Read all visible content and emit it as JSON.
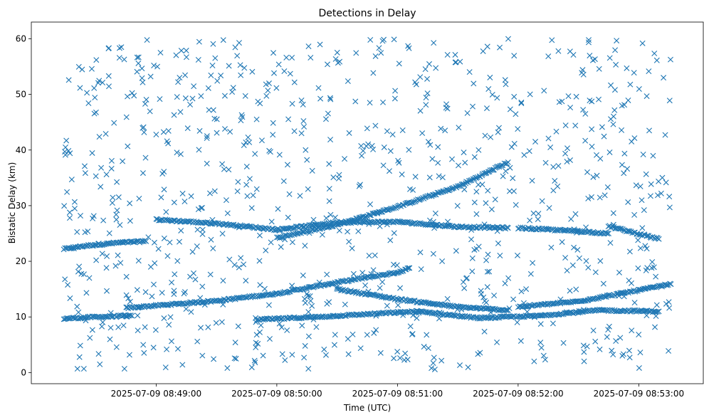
{
  "chart_data": {
    "type": "scatter",
    "title": "Detections in Delay",
    "xlabel": "Time (UTC)",
    "ylabel": "Bistatic Delay (km)",
    "marker": "x",
    "color": "#1f77b4",
    "grid": false,
    "xlim": [
      "2025-07-09 08:48:05",
      "2025-07-09 08:53:25"
    ],
    "ylim": [
      -2,
      63
    ],
    "xticks": [
      "2025-07-09 08:49:00",
      "2025-07-09 08:50:00",
      "2025-07-09 08:51:00",
      "2025-07-09 08:52:00",
      "2025-07-09 08:53:00"
    ],
    "yticks": [
      0,
      10,
      20,
      30,
      40,
      50,
      60
    ],
    "series": [
      {
        "kind": "track",
        "points": [
          {
            "x": "2025-07-09 08:48:14",
            "y": 22.2
          },
          {
            "x": "2025-07-09 08:48:25",
            "y": 22.8
          },
          {
            "x": "2025-07-09 08:48:40",
            "y": 23.3
          },
          {
            "x": "2025-07-09 08:48:55",
            "y": 23.6
          }
        ]
      },
      {
        "kind": "track",
        "points": [
          {
            "x": "2025-07-09 08:48:14",
            "y": 9.7
          },
          {
            "x": "2025-07-09 08:48:30",
            "y": 10.0
          },
          {
            "x": "2025-07-09 08:48:48",
            "y": 10.2
          }
        ]
      },
      {
        "kind": "track",
        "points": [
          {
            "x": "2025-07-09 08:48:45",
            "y": 11.6
          },
          {
            "x": "2025-07-09 08:49:30",
            "y": 12.9
          },
          {
            "x": "2025-07-09 08:50:00",
            "y": 14.2
          },
          {
            "x": "2025-07-09 08:50:30",
            "y": 16.2
          },
          {
            "x": "2025-07-09 08:51:00",
            "y": 18.0
          },
          {
            "x": "2025-07-09 08:51:06",
            "y": 18.8
          }
        ]
      },
      {
        "kind": "track",
        "points": [
          {
            "x": "2025-07-09 08:50:00",
            "y": 24.2
          },
          {
            "x": "2025-07-09 08:50:30",
            "y": 26.6
          },
          {
            "x": "2025-07-09 08:51:00",
            "y": 29.8
          },
          {
            "x": "2025-07-09 08:51:30",
            "y": 33.4
          },
          {
            "x": "2025-07-09 08:51:55",
            "y": 37.8
          }
        ]
      },
      {
        "kind": "track",
        "points": [
          {
            "x": "2025-07-09 08:49:00",
            "y": 27.5
          },
          {
            "x": "2025-07-09 08:49:30",
            "y": 26.8
          },
          {
            "x": "2025-07-09 08:50:00",
            "y": 25.7
          },
          {
            "x": "2025-07-09 08:50:30",
            "y": 27.0
          },
          {
            "x": "2025-07-09 08:51:00",
            "y": 27.1
          },
          {
            "x": "2025-07-09 08:51:30",
            "y": 26.2
          },
          {
            "x": "2025-07-09 08:51:55",
            "y": 26.0
          }
        ]
      },
      {
        "kind": "track",
        "points": [
          {
            "x": "2025-07-09 08:50:30",
            "y": 15.0
          },
          {
            "x": "2025-07-09 08:51:00",
            "y": 13.2
          },
          {
            "x": "2025-07-09 08:51:30",
            "y": 11.8
          },
          {
            "x": "2025-07-09 08:51:55",
            "y": 11.2
          }
        ]
      },
      {
        "kind": "track",
        "points": [
          {
            "x": "2025-07-09 08:52:00",
            "y": 11.8
          },
          {
            "x": "2025-07-09 08:52:30",
            "y": 12.8
          },
          {
            "x": "2025-07-09 08:53:00",
            "y": 14.8
          },
          {
            "x": "2025-07-09 08:53:16",
            "y": 15.9
          }
        ]
      },
      {
        "kind": "track",
        "points": [
          {
            "x": "2025-07-09 08:52:00",
            "y": 26.0
          },
          {
            "x": "2025-07-09 08:52:30",
            "y": 25.4
          },
          {
            "x": "2025-07-09 08:52:45",
            "y": 25.0
          }
        ]
      },
      {
        "kind": "track",
        "points": [
          {
            "x": "2025-07-09 08:52:45",
            "y": 26.3
          },
          {
            "x": "2025-07-09 08:53:10",
            "y": 24.0
          }
        ]
      },
      {
        "kind": "track",
        "points": [
          {
            "x": "2025-07-09 08:49:50",
            "y": 9.5
          },
          {
            "x": "2025-07-09 08:50:20",
            "y": 10.0
          },
          {
            "x": "2025-07-09 08:51:10",
            "y": 11.0
          },
          {
            "x": "2025-07-09 08:51:40",
            "y": 9.8
          },
          {
            "x": "2025-07-09 08:52:10",
            "y": 10.2
          },
          {
            "x": "2025-07-09 08:52:40",
            "y": 11.2
          },
          {
            "x": "2025-07-09 08:53:10",
            "y": 11.0
          }
        ]
      },
      {
        "kind": "noise",
        "count": 900,
        "x_range": [
          "2025-07-09 08:48:14",
          "2025-07-09 08:53:16"
        ],
        "y_range": [
          0.5,
          60
        ]
      }
    ]
  }
}
